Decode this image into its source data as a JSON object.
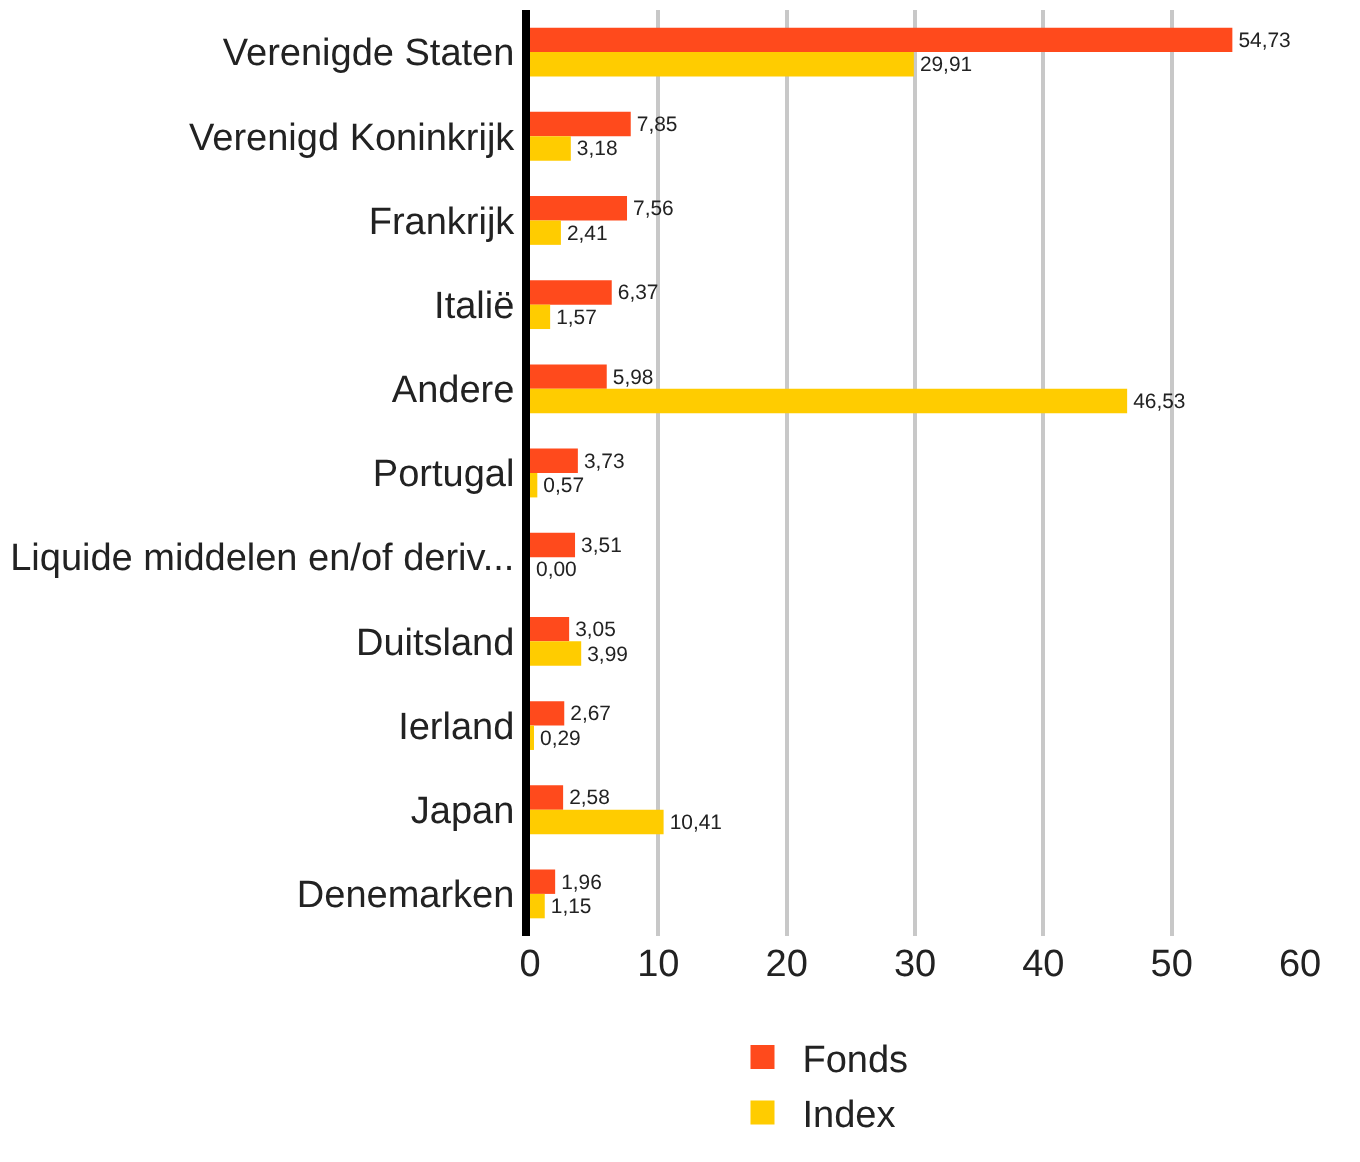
{
  "chart_data": {
    "type": "bar",
    "orientation": "horizontal",
    "categories": [
      "Verenigde Staten",
      "Verenigd Koninkrijk",
      "Frankrijk",
      "Italië",
      "Andere",
      "Portugal",
      "Liquide middelen en/of deriv...",
      "Duitsland",
      "Ierland",
      "Japan",
      "Denemarken"
    ],
    "series": [
      {
        "name": "Fonds",
        "color": "#ff4a1c",
        "values": [
          54.73,
          7.85,
          7.56,
          6.37,
          5.98,
          3.73,
          3.51,
          3.05,
          2.67,
          2.58,
          1.96
        ],
        "value_labels": [
          "54,73",
          "7,85",
          "7,56",
          "6,37",
          "5,98",
          "3,73",
          "3,51",
          "3,05",
          "2,67",
          "2,58",
          "1,96"
        ]
      },
      {
        "name": "Index",
        "color": "#ffcc00",
        "values": [
          29.91,
          3.18,
          2.41,
          1.57,
          46.53,
          0.57,
          0.0,
          3.99,
          0.29,
          10.41,
          1.15
        ],
        "value_labels": [
          "29,91",
          "3,18",
          "2,41",
          "1,57",
          "46,53",
          "0,57",
          "0,00",
          "3,99",
          "0,29",
          "10,41",
          "1,15"
        ]
      }
    ],
    "xlim": [
      0,
      60
    ],
    "xticks": [
      0,
      10,
      20,
      30,
      40,
      50,
      60
    ],
    "grid": "x",
    "legend": "bottom"
  }
}
